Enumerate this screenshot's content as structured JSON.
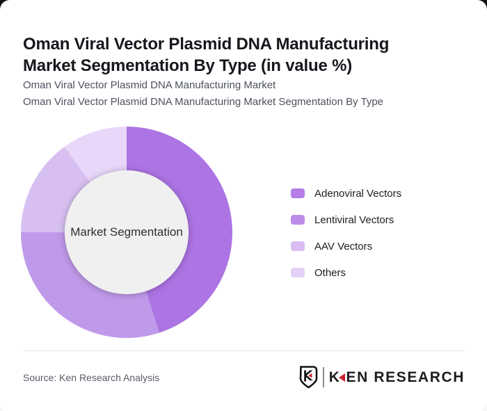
{
  "header": {
    "title": "Oman Viral Vector Plasmid DNA Manufacturing Market Segmentation By Type (in value %)",
    "subtitle_line1": "Oman Viral Vector Plasmid DNA Manufacturing Market",
    "subtitle_line2": "Oman Viral Vector Plasmid DNA Manufacturing Market Segmentation By Type"
  },
  "chart_data": {
    "type": "pie",
    "subtype": "donut",
    "title": "Oman Viral Vector Plasmid DNA Manufacturing Market Segmentation By Type (in value %)",
    "center_label": "Market Segmentation",
    "categories": [
      "Adenoviral Vectors",
      "Lentiviral Vectors",
      "AAV Vectors",
      "Others"
    ],
    "values": [
      45,
      30,
      15,
      10
    ],
    "unit": "percent (estimated from arc angles; no data labels shown)",
    "colors": [
      "#ad74e4",
      "#c09aea",
      "#d7c0f1",
      "#e8d7f9"
    ],
    "hole_color": "#f0f0f0",
    "hole_radius_ratio": 0.586,
    "start_angle_deg": -90,
    "direction": "clockwise",
    "legend_position": "right"
  },
  "legend_swatch_colors": [
    "#b57de6",
    "#bd8cea",
    "#d9bdf2",
    "#e3d0f7"
  ],
  "footer": {
    "source_text": "Source: Ken Research Analysis",
    "logo_shield_letter": "K",
    "logo_text": "EN RESEARCH",
    "logo_accent_color": "#cf2030"
  }
}
